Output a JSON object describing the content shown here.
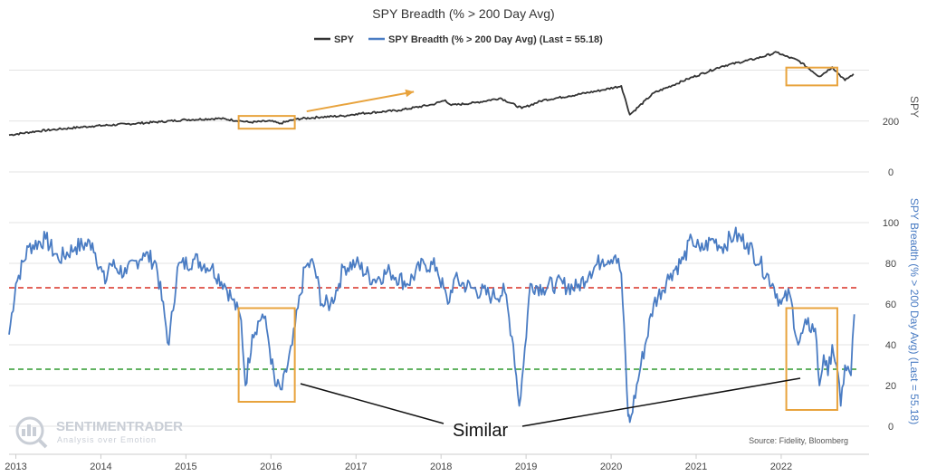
{
  "chart_data": {
    "type": "line",
    "title": "SPY Breadth (% > 200 Day Avg)",
    "legend": {
      "placement": "top-center",
      "entries": [
        "SPY",
        "SPY Breadth (% > 200 Day Avg) (Last = 55.18)"
      ]
    },
    "x_ticks": [
      "2013",
      "2014",
      "2015",
      "2016",
      "2017",
      "2018",
      "2019",
      "2020",
      "2021",
      "2022"
    ],
    "colors": {
      "spy": "#333333",
      "breadth": "#4a7cc3",
      "red_line": "#d93025",
      "green_line": "#2e9a2e",
      "highlight": "#e8a33d"
    },
    "panels": [
      {
        "name": "SPY",
        "ylabel": "SPY",
        "y_ticks": [
          "0",
          "200"
        ],
        "ylim": [
          0,
          480
        ],
        "series": [
          {
            "name": "SPY",
            "x": [
              2012.92,
              2013.25,
              2013.5,
              2013.9,
              2014.3,
              2014.7,
              2015.0,
              2015.4,
              2015.65,
              2015.75,
              2016.0,
              2016.1,
              2016.3,
              2016.6,
              2016.85,
              2017.0,
              2017.5,
              2017.9,
              2018.05,
              2018.12,
              2018.4,
              2018.7,
              2018.95,
              2019.2,
              2019.5,
              2019.9,
              2020.12,
              2020.22,
              2020.5,
              2020.9,
              2021.3,
              2021.7,
              2021.95,
              2022.05,
              2022.2,
              2022.45,
              2022.6,
              2022.75,
              2022.85
            ],
            "values": [
              145,
              160,
              168,
              180,
              188,
              197,
              205,
              210,
              200,
              195,
              200,
              190,
              208,
              216,
              220,
              228,
              242,
              265,
              282,
              262,
              272,
              290,
              250,
              282,
              298,
              322,
              338,
              225,
              310,
              365,
              415,
              445,
              470,
              455,
              438,
              375,
              412,
              360,
              385
            ]
          }
        ],
        "annotations": [
          {
            "type": "box",
            "x": [
              2015.62,
              2016.28
            ],
            "y": [
              170,
              220
            ]
          },
          {
            "type": "arrow",
            "from": [
              2016.42,
              238
            ],
            "to": [
              2017.68,
              315
            ]
          },
          {
            "type": "box",
            "x": [
              2022.06,
              2022.66
            ],
            "y": [
              340,
              410
            ]
          }
        ]
      },
      {
        "name": "SPY Breadth (% > 200 Day Avg)",
        "ylabel": "SPY Breadth (% > 200 Day Avg) (Last = 55.18)",
        "y_ticks": [
          "0",
          "20",
          "40",
          "60",
          "80",
          "100"
        ],
        "ylim": [
          -12,
          108
        ],
        "series": [
          {
            "name": "SPY Breadth (% > 200 Day Avg)",
            "x": [
              2012.92,
              2013.0,
              2013.15,
              2013.35,
              2013.5,
              2013.7,
              2013.9,
              2014.05,
              2014.1,
              2014.3,
              2014.5,
              2014.65,
              2014.8,
              2014.9,
              2015.1,
              2015.3,
              2015.45,
              2015.55,
              2015.65,
              2015.7,
              2015.78,
              2015.9,
              2015.95,
              2016.05,
              2016.13,
              2016.25,
              2016.4,
              2016.5,
              2016.6,
              2016.7,
              2016.8,
              2016.85,
              2017.0,
              2017.2,
              2017.4,
              2017.6,
              2017.8,
              2017.95,
              2018.08,
              2018.15,
              2018.35,
              2018.6,
              2018.75,
              2018.85,
              2018.92,
              2018.97,
              2019.05,
              2019.2,
              2019.35,
              2019.6,
              2019.75,
              2019.9,
              2020.05,
              2020.12,
              2020.2,
              2020.22,
              2020.35,
              2020.5,
              2020.7,
              2020.85,
              2020.95,
              2021.05,
              2021.2,
              2021.3,
              2021.45,
              2021.6,
              2021.75,
              2021.9,
              2022.0,
              2022.1,
              2022.2,
              2022.3,
              2022.4,
              2022.45,
              2022.5,
              2022.55,
              2022.6,
              2022.65,
              2022.7,
              2022.75,
              2022.82,
              2022.86
            ],
            "values": [
              45,
              70,
              88,
              92,
              82,
              88,
              90,
              70,
              80,
              75,
              85,
              80,
              40,
              78,
              82,
              78,
              70,
              62,
              52,
              20,
              45,
              55,
              48,
              20,
              18,
              40,
              78,
              80,
              60,
              60,
              70,
              78,
              80,
              72,
              76,
              70,
              80,
              78,
              60,
              72,
              68,
              64,
              66,
              40,
              10,
              30,
              70,
              68,
              70,
              68,
              76,
              82,
              84,
              75,
              5,
              2,
              30,
              60,
              75,
              82,
              92,
              86,
              92,
              88,
              94,
              90,
              80,
              70,
              60,
              65,
              40,
              50,
              48,
              20,
              35,
              25,
              40,
              30,
              10,
              30,
              25,
              55
            ]
          }
        ],
        "reference_lines": [
          68,
          28
        ],
        "annotations": [
          {
            "type": "box",
            "x": [
              2015.62,
              2016.28
            ],
            "y": [
              12,
              58
            ]
          },
          {
            "type": "box",
            "x": [
              2022.06,
              2022.66
            ],
            "y": [
              8,
              58
            ]
          }
        ],
        "text_annotations": [
          {
            "text": "Similar"
          }
        ]
      }
    ],
    "source": "Source: Fidelity, Bloomberg"
  },
  "watermark": {
    "brand": "SENTIMENTRADER",
    "tagline": "Analysis over Emotion"
  }
}
